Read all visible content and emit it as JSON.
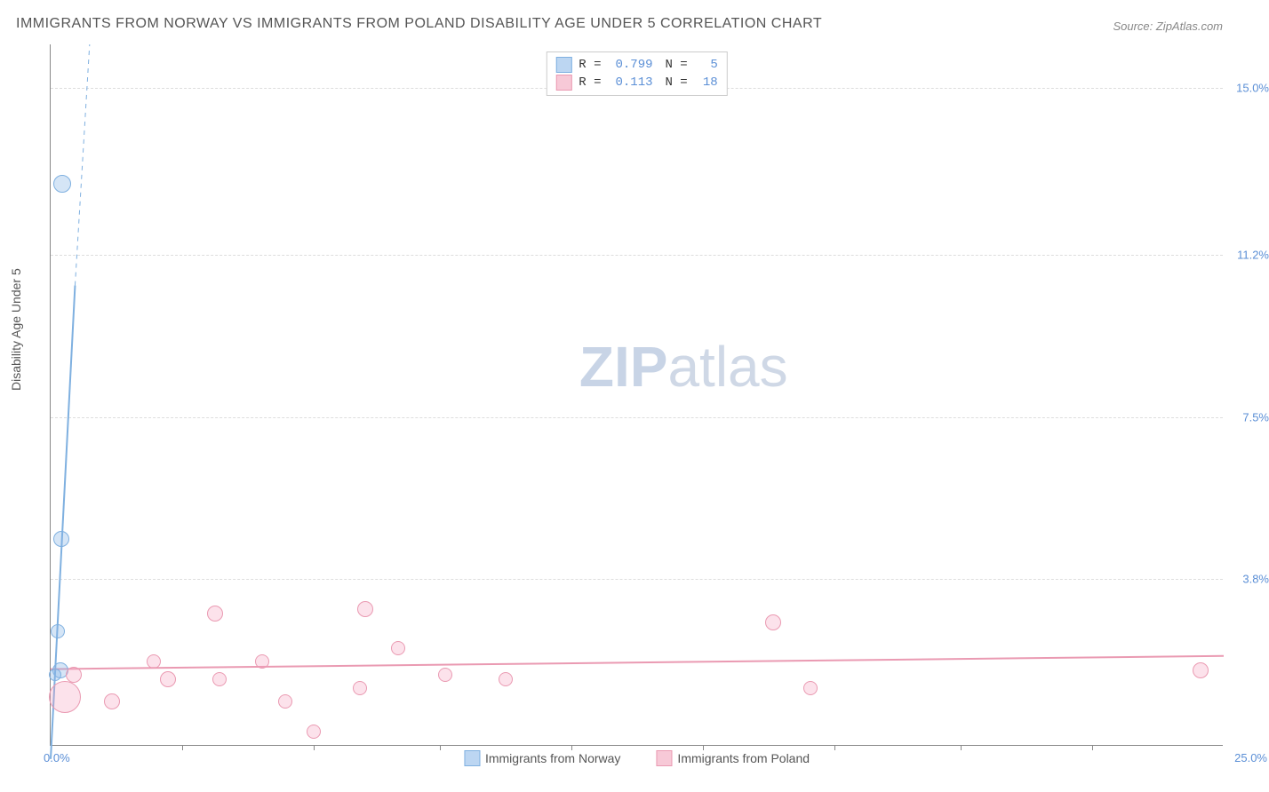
{
  "title": "IMMIGRANTS FROM NORWAY VS IMMIGRANTS FROM POLAND DISABILITY AGE UNDER 5 CORRELATION CHART",
  "source": "Source: ZipAtlas.com",
  "ylabel": "Disability Age Under 5",
  "watermark_bold": "ZIP",
  "watermark_light": "atlas",
  "chart": {
    "type": "scatter",
    "xlim": [
      0,
      25
    ],
    "ylim": [
      0,
      16
    ],
    "xlabel_min": "0.0%",
    "xlabel_max": "25.0%",
    "xtick_positions": [
      2.8,
      5.6,
      8.3,
      11.1,
      13.9,
      16.7,
      19.4,
      22.2
    ],
    "ygrid": [
      {
        "y": 3.8,
        "label": "3.8%"
      },
      {
        "y": 7.5,
        "label": "7.5%"
      },
      {
        "y": 11.2,
        "label": "11.2%"
      },
      {
        "y": 15.0,
        "label": "15.0%"
      }
    ],
    "grid_color": "#dddddd",
    "background_color": "#ffffff",
    "value_color": "#5b8fd6"
  },
  "series": [
    {
      "name": "Immigrants from Norway",
      "color_fill": "rgba(135,180,230,0.35)",
      "color_stroke": "#7fb0e0",
      "swatch_fill": "#bcd6f2",
      "swatch_stroke": "#7fb0e0",
      "R": "0.799",
      "N": "5",
      "trend": {
        "x1": 0.0,
        "y1": -0.3,
        "x2": 0.52,
        "y2": 10.5,
        "dash_from_y": 10.5,
        "dash_x2": 0.83,
        "dash_y2": 16.0,
        "stroke_width": 2
      },
      "points": [
        {
          "x": 0.25,
          "y": 12.8,
          "r": 10
        },
        {
          "x": 0.22,
          "y": 4.7,
          "r": 9
        },
        {
          "x": 0.15,
          "y": 2.6,
          "r": 8
        },
        {
          "x": 0.2,
          "y": 1.7,
          "r": 9
        },
        {
          "x": 0.1,
          "y": 1.6,
          "r": 7
        }
      ]
    },
    {
      "name": "Immigrants from Poland",
      "color_fill": "rgba(245,160,190,0.30)",
      "color_stroke": "#ea9ab2",
      "swatch_fill": "#f7c9d7",
      "swatch_stroke": "#ea9ab2",
      "R": "0.113",
      "N": "18",
      "trend": {
        "x1": 0.0,
        "y1": 1.75,
        "x2": 25.0,
        "y2": 2.05,
        "stroke_width": 2
      },
      "points": [
        {
          "x": 0.3,
          "y": 1.1,
          "r": 18
        },
        {
          "x": 0.5,
          "y": 1.6,
          "r": 9
        },
        {
          "x": 1.3,
          "y": 1.0,
          "r": 9
        },
        {
          "x": 2.2,
          "y": 1.9,
          "r": 8
        },
        {
          "x": 2.5,
          "y": 1.5,
          "r": 9
        },
        {
          "x": 3.5,
          "y": 3.0,
          "r": 9
        },
        {
          "x": 3.6,
          "y": 1.5,
          "r": 8
        },
        {
          "x": 4.5,
          "y": 1.9,
          "r": 8
        },
        {
          "x": 5.0,
          "y": 1.0,
          "r": 8
        },
        {
          "x": 5.6,
          "y": 0.3,
          "r": 8
        },
        {
          "x": 6.6,
          "y": 1.3,
          "r": 8
        },
        {
          "x": 6.7,
          "y": 3.1,
          "r": 9
        },
        {
          "x": 7.4,
          "y": 2.2,
          "r": 8
        },
        {
          "x": 8.4,
          "y": 1.6,
          "r": 8
        },
        {
          "x": 9.7,
          "y": 1.5,
          "r": 8
        },
        {
          "x": 15.4,
          "y": 2.8,
          "r": 9
        },
        {
          "x": 16.2,
          "y": 1.3,
          "r": 8
        },
        {
          "x": 24.5,
          "y": 1.7,
          "r": 9
        }
      ]
    }
  ],
  "legend_bottom": [
    {
      "label": "Immigrants from Norway",
      "series": 0
    },
    {
      "label": "Immigrants from Poland",
      "series": 1
    }
  ]
}
